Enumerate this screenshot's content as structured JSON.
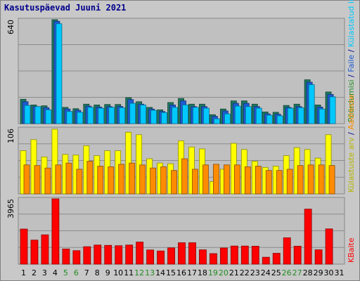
{
  "chart_data": {
    "type": "bar",
    "title": "Kasutuspäevad Juuni 2021",
    "categories": [
      "1",
      "2",
      "3",
      "4",
      "5",
      "6",
      "7",
      "8",
      "9",
      "10",
      "11",
      "12",
      "13",
      "14",
      "15",
      "16",
      "17",
      "18",
      "19",
      "20",
      "21",
      "22",
      "23",
      "24",
      "25",
      "26",
      "27",
      "28",
      "29",
      "30",
      "31"
    ],
    "weekend_days": [
      5,
      6,
      12,
      13,
      19,
      20,
      26,
      27
    ],
    "category_colors": {
      "weekday": "#000000",
      "weekend": "#228b22"
    },
    "panels": [
      {
        "id": "top",
        "ymax": 640,
        "ymax_label": "640",
        "right_labels": [
          {
            "text": "Pöördumisi",
            "color": "#228b22"
          },
          {
            "text": " / ",
            "color": "#00008b"
          },
          {
            "text": "Faile",
            "color": "#1e5ad2"
          },
          {
            "text": " / ",
            "color": "#00008b"
          },
          {
            "text": "Külastatud lehti",
            "color": "#00c8ff"
          }
        ],
        "series": [
          {
            "name": "Pöördumisi",
            "color": "#1e7860",
            "values": [
              150,
              115,
              110,
              640,
              100,
              92,
              120,
              115,
              118,
              118,
              160,
              135,
              100,
              85,
              130,
              155,
              120,
              120,
              55,
              90,
              140,
              140,
              120,
              72,
              70,
              112,
              120,
              270,
              115,
              195,
              0
            ]
          },
          {
            "name": "Faile",
            "color": "#1e5ad2",
            "values": [
              135,
              105,
              98,
              630,
              90,
              82,
              108,
              102,
              105,
              106,
              148,
              120,
              90,
              75,
              115,
              140,
              105,
              105,
              45,
              78,
              125,
              125,
              105,
              60,
              58,
              100,
              105,
              255,
              102,
              180,
              0
            ]
          },
          {
            "name": "Külastatud lehti",
            "color": "#00c8ff",
            "values": [
              112,
              105,
              85,
              615,
              75,
              70,
              100,
              95,
              100,
              98,
              125,
              115,
              82,
              68,
              100,
              115,
              100,
              95,
              30,
              60,
              108,
              105,
              95,
              52,
              48,
              95,
              98,
              240,
              90,
              165,
              0
            ]
          }
        ]
      },
      {
        "id": "mid",
        "ymax": 106,
        "ymax_label": "106",
        "right_labels": [
          {
            "text": "Külastuste arv",
            "color": "#b4b400"
          },
          {
            "text": " / ",
            "color": "#00008b"
          },
          {
            "text": "Aadresse",
            "color": "#ff8c00"
          }
        ],
        "series": [
          {
            "name": "Külastuste arv",
            "color": "#ffff00",
            "values": [
              70,
              88,
              60,
              105,
              64,
              63,
              78,
              62,
              70,
              70,
              100,
              96,
              57,
              50,
              49,
              86,
              76,
              73,
              20,
              40,
              82,
              72,
              53,
              43,
              45,
              62,
              75,
              72,
              58,
              96,
              0
            ]
          },
          {
            "name": "Aadresse",
            "color": "#ff8c00",
            "values": [
              47,
              46,
              42,
              47,
              50,
              40,
              53,
              45,
              44,
              48,
              50,
              47,
              42,
              44,
              38,
              57,
              40,
              47,
              48,
              47,
              47,
              44,
              45,
              38,
              38,
              40,
              46,
              47,
              47,
              46,
              0
            ]
          }
        ]
      },
      {
        "id": "bot",
        "ymax": 3965,
        "ymax_label": "3965",
        "right_labels": [
          {
            "text": "KBaite",
            "color": "#ff0000"
          }
        ],
        "series": [
          {
            "name": "KBaite",
            "color": "#ff0000",
            "values": [
              2130,
              1460,
              1780,
              3965,
              920,
              820,
              1060,
              1160,
              1140,
              1120,
              1160,
              1340,
              860,
              800,
              990,
              1300,
              1300,
              870,
              640,
              980,
              1100,
              1100,
              1090,
              420,
              660,
              1600,
              1090,
              3340,
              870,
              2140,
              0
            ]
          }
        ]
      }
    ]
  }
}
